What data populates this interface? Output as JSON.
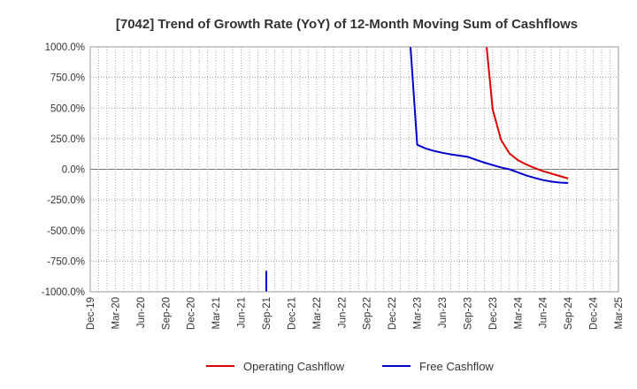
{
  "chart_data": {
    "type": "line",
    "title": "[7042]  Trend of Growth Rate (YoY) of 12-Month Moving Sum of Cashflows",
    "xlabel": "",
    "ylabel": "",
    "ylim": [
      -1000,
      1000
    ],
    "yticks": [
      1000,
      750,
      500,
      250,
      0,
      -250,
      -500,
      -750,
      -1000
    ],
    "ytick_labels": [
      "1000.0%",
      "750.0%",
      "500.0%",
      "250.0%",
      "0.0%",
      "-250.0%",
      "-500.0%",
      "-750.0%",
      "-1000.0%"
    ],
    "xticks": [
      "Dec-19",
      "Mar-20",
      "Jun-20",
      "Sep-20",
      "Dec-20",
      "Mar-21",
      "Jun-21",
      "Sep-21",
      "Dec-21",
      "Mar-22",
      "Jun-22",
      "Sep-22",
      "Dec-22",
      "Mar-23",
      "Jun-23",
      "Sep-23",
      "Dec-23",
      "Mar-24",
      "Jun-24",
      "Sep-24",
      "Dec-24",
      "Mar-25"
    ],
    "grid": true,
    "legend_position": "bottom",
    "series": [
      {
        "name": "Operating Cashflow",
        "color": "#dd0000",
        "points": [
          [
            "Nov-23",
            1200
          ],
          [
            "Dec-23",
            490
          ],
          [
            "Jan-24",
            240
          ],
          [
            "Feb-24",
            130
          ],
          [
            "Mar-24",
            75
          ],
          [
            "Apr-24",
            40
          ],
          [
            "May-24",
            10
          ],
          [
            "Jun-24",
            -15
          ],
          [
            "Jul-24",
            -35
          ],
          [
            "Aug-24",
            -55
          ],
          [
            "Sep-24",
            -75
          ]
        ]
      },
      {
        "name": "Free Cashflow",
        "color": "#0000cc",
        "points": [
          [
            "Feb-23",
            1200
          ],
          [
            "Mar-23",
            200
          ],
          [
            "Apr-23",
            170
          ],
          [
            "May-23",
            150
          ],
          [
            "Jun-23",
            135
          ],
          [
            "Jul-23",
            122
          ],
          [
            "Aug-23",
            112
          ],
          [
            "Sep-23",
            102
          ],
          [
            "Oct-23",
            78
          ],
          [
            "Nov-23",
            55
          ],
          [
            "Dec-23",
            35
          ],
          [
            "Jan-24",
            15
          ],
          [
            "Feb-24",
            0
          ],
          [
            "Mar-24",
            -25
          ],
          [
            "Apr-24",
            -50
          ],
          [
            "May-24",
            -70
          ],
          [
            "Jun-24",
            -88
          ],
          [
            "Jul-24",
            -100
          ],
          [
            "Aug-24",
            -108
          ],
          [
            "Sep-24",
            -112
          ]
        ],
        "extra_segments": [
          [
            [
              "Sep-21",
              -830
            ],
            [
              "Sep-21",
              -1100
            ]
          ]
        ]
      }
    ]
  }
}
